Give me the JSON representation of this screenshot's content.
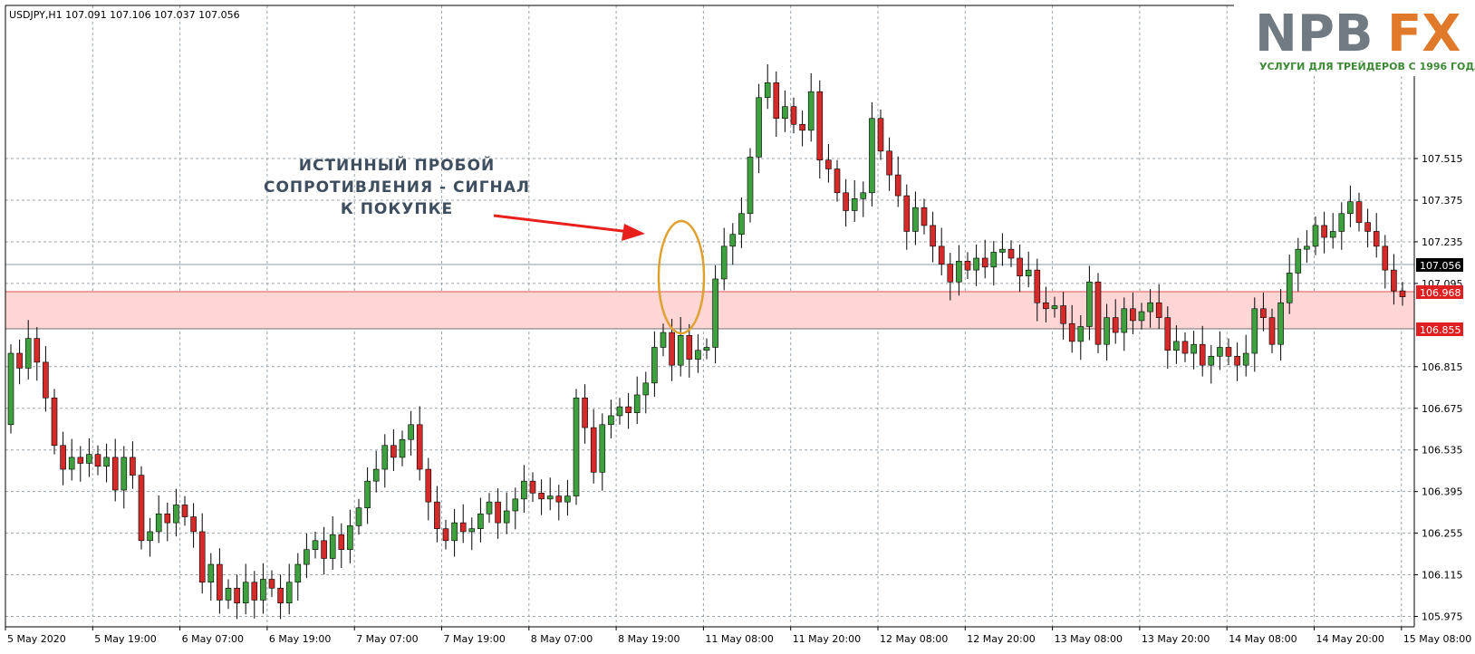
{
  "symbol_header": "USDJPY,H1  107.091 107.106 107.037 107.056",
  "logo": {
    "letters_main": "NPB",
    "letters_accent": "FX",
    "tagline": "УСЛУГИ ДЛЯ ТРЕЙДЕРОВ С 1996 ГОДА",
    "main_color": "#707a80",
    "accent_color": "#e07a2a"
  },
  "annotation": {
    "lines": [
      "ИСТИННЫЙ ПРОБОЙ",
      "СОПРОТИВЛЕНИЯ - СИГНАЛ",
      "К ПОКУПКЕ"
    ],
    "arrow_color": "#e8201c",
    "highlight_color": "#e0a030"
  },
  "price_badges": {
    "current": "107.056",
    "zone_top": "106.968",
    "zone_bottom": "106.855",
    "current_bg": "#000000",
    "zone_bg": "#e02020"
  },
  "chart_data": {
    "type": "candlestick",
    "symbol": "USDJPY",
    "timeframe": "H1",
    "ylim": [
      105.94,
      108.03
    ],
    "y_ticks": [
      "107.515",
      "107.375",
      "107.235",
      "107.095",
      "106.815",
      "106.675",
      "106.535",
      "106.395",
      "106.255",
      "106.115",
      "105.975"
    ],
    "x_ticks": [
      "5 May 2020",
      "5 May 19:00",
      "6 May 07:00",
      "6 May 19:00",
      "7 May 07:00",
      "7 May 19:00",
      "8 May 07:00",
      "8 May 19:00",
      "11 May 08:00",
      "11 May 20:00",
      "12 May 08:00",
      "12 May 20:00",
      "13 May 08:00",
      "13 May 20:00",
      "14 May 08:00",
      "14 May 20:00",
      "15 May 08:00"
    ],
    "current_price": 107.056,
    "resistance_zone": [
      106.855,
      106.968
    ],
    "grid": true,
    "up_color": "#3ea03e",
    "down_color": "#d42a2a",
    "closes": [
      106.86,
      106.81,
      106.91,
      106.83,
      106.71,
      106.55,
      106.47,
      106.51,
      106.49,
      106.52,
      106.48,
      106.51,
      106.4,
      106.51,
      106.45,
      106.23,
      106.26,
      106.32,
      106.29,
      106.35,
      106.31,
      106.26,
      106.09,
      106.15,
      106.03,
      106.07,
      106.02,
      106.09,
      106.03,
      106.1,
      106.07,
      106.02,
      106.09,
      106.15,
      106.2,
      106.23,
      106.17,
      106.25,
      106.2,
      106.28,
      106.34,
      106.43,
      106.47,
      106.55,
      106.51,
      106.57,
      106.62,
      106.47,
      106.36,
      106.27,
      106.23,
      106.29,
      106.26,
      106.27,
      106.32,
      106.36,
      106.29,
      106.33,
      106.37,
      106.43,
      106.39,
      106.37,
      106.38,
      106.36,
      106.38,
      106.71,
      106.61,
      106.46,
      106.62,
      106.65,
      106.68,
      106.66,
      106.72,
      106.76,
      106.88,
      106.93,
      106.82,
      106.92,
      106.84,
      106.87,
      106.88,
      107.11,
      107.22,
      107.26,
      107.33,
      107.52,
      107.72,
      107.77,
      107.65,
      107.69,
      107.63,
      107.61,
      107.74,
      107.51,
      107.48,
      107.4,
      107.34,
      107.38,
      107.4,
      107.65,
      107.54,
      107.46,
      107.39,
      107.27,
      107.35,
      107.29,
      107.22,
      107.16,
      107.1,
      107.17,
      107.14,
      107.18,
      107.15,
      107.2,
      107.21,
      107.18,
      107.12,
      107.14,
      107.03,
      107.01,
      107.02,
      106.96,
      106.9,
      106.95,
      107.1,
      106.89,
      106.98,
      106.93,
      107.01,
      106.97,
      107.0,
      107.03,
      106.98,
      106.87,
      106.9,
      106.86,
      106.89,
      106.82,
      106.85,
      106.88,
      106.85,
      106.82,
      106.86,
      107.01,
      106.98,
      106.89,
      107.03,
      107.13,
      107.21,
      107.22,
      107.29,
      107.25,
      107.27,
      107.33,
      107.37,
      107.3,
      107.27,
      107.22,
      107.14,
      107.07,
      107.05
    ],
    "opens_start": 106.62
  }
}
